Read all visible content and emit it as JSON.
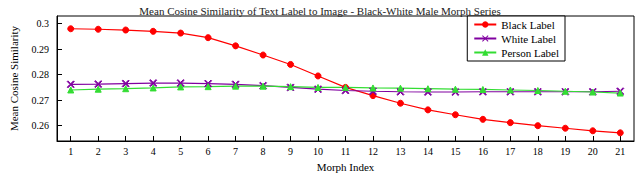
{
  "chart_data": {
    "type": "line",
    "title": "Mean Cosine Similarity of Text Label to Image - Black-White Male Morph Series",
    "x_label": "Morph Index",
    "y_label": "Mean Cosine Similarity",
    "categories": [
      1,
      2,
      3,
      4,
      5,
      6,
      7,
      8,
      9,
      10,
      11,
      12,
      13,
      14,
      15,
      16,
      17,
      18,
      19,
      20,
      21
    ],
    "series": [
      {
        "name": "Black Label",
        "color": "#ff0000",
        "marker": "circle",
        "values": [
          0.298,
          0.2978,
          0.2975,
          0.297,
          0.2963,
          0.2945,
          0.2913,
          0.2877,
          0.284,
          0.2795,
          0.275,
          0.2718,
          0.2688,
          0.2662,
          0.2643,
          0.2625,
          0.2612,
          0.26,
          0.259,
          0.258,
          0.2572
        ]
      },
      {
        "name": "White Label",
        "color": "#8000a0",
        "marker": "x",
        "values": [
          0.2762,
          0.2763,
          0.2765,
          0.2767,
          0.2767,
          0.2765,
          0.2762,
          0.2757,
          0.275,
          0.2743,
          0.2738,
          0.2735,
          0.2733,
          0.2732,
          0.2732,
          0.2733,
          0.2733,
          0.2733,
          0.2733,
          0.2733,
          0.2735
        ]
      },
      {
        "name": "Person Label",
        "color": "#33dd33",
        "marker": "triangle",
        "values": [
          0.274,
          0.2743,
          0.2745,
          0.2748,
          0.2752,
          0.2753,
          0.2755,
          0.2755,
          0.2753,
          0.275,
          0.275,
          0.2748,
          0.2747,
          0.2745,
          0.2743,
          0.2742,
          0.274,
          0.2738,
          0.2735,
          0.2732,
          0.2728
        ]
      }
    ],
    "ylim": [
      0.254,
      0.303
    ],
    "yticks": [
      0.26,
      0.27,
      0.28,
      0.29,
      0.3
    ],
    "grid": false,
    "legend": "top-right"
  }
}
